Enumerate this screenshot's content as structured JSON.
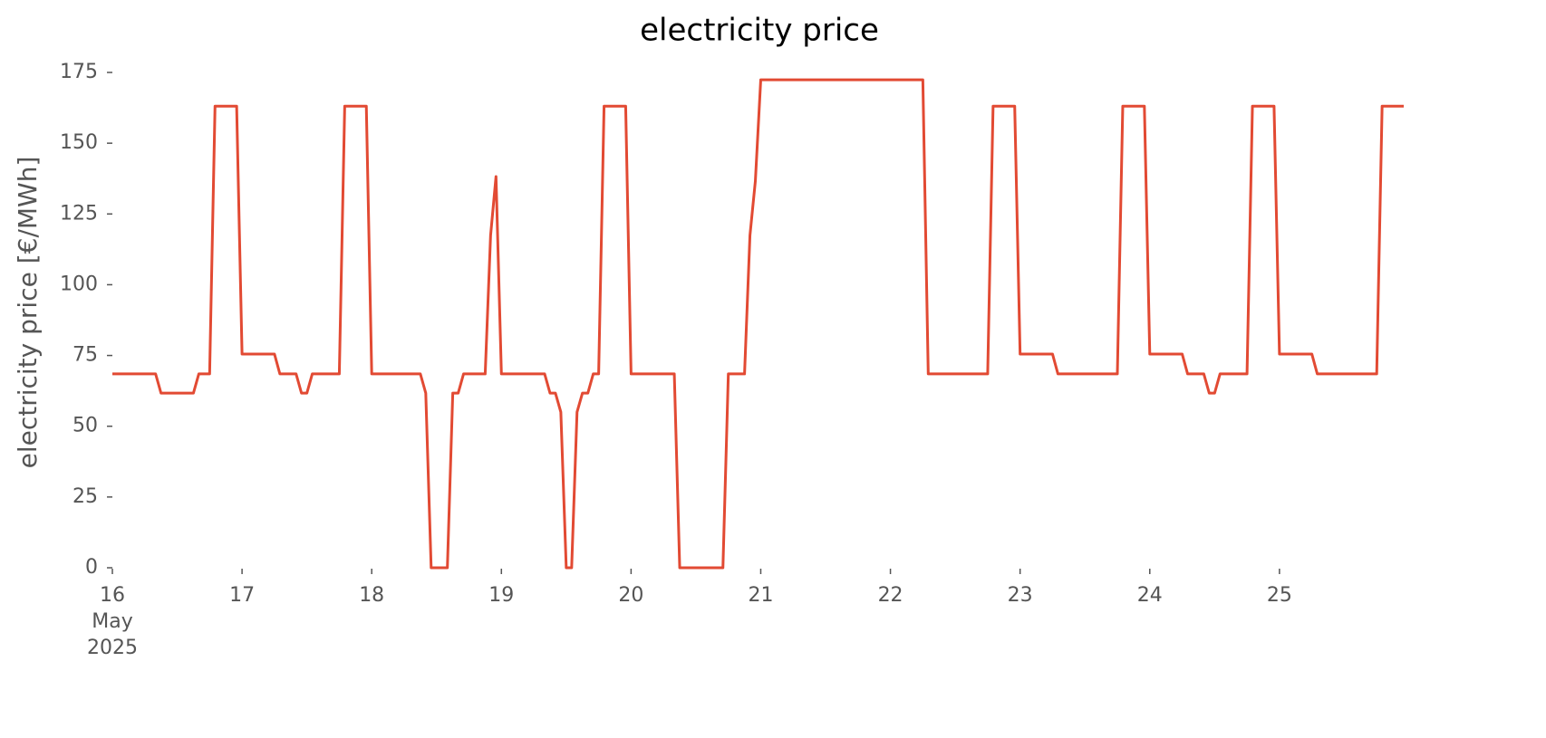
{
  "chart_data": {
    "type": "line",
    "title": "electricity price",
    "ylabel": "electricity price [€/MWh]",
    "color": "#e24a33",
    "xlim": [
      "2025-05-16T00:00",
      "2025-05-25T23:00"
    ],
    "xticks": [
      {
        "value": "2025-05-16T00:00",
        "label": "16\nMay\n2025"
      },
      {
        "value": "2025-05-17T00:00",
        "label": "17"
      },
      {
        "value": "2025-05-18T00:00",
        "label": "18"
      },
      {
        "value": "2025-05-19T00:00",
        "label": "19"
      },
      {
        "value": "2025-05-20T00:00",
        "label": "20"
      },
      {
        "value": "2025-05-21T00:00",
        "label": "21"
      },
      {
        "value": "2025-05-22T00:00",
        "label": "22"
      },
      {
        "value": "2025-05-23T00:00",
        "label": "23"
      },
      {
        "value": "2025-05-24T00:00",
        "label": "24"
      },
      {
        "value": "2025-05-25T00:00",
        "label": "25"
      }
    ],
    "ylim": [
      0,
      175
    ],
    "yticks": [
      0,
      25,
      50,
      75,
      100,
      125,
      150,
      175
    ],
    "x": [
      "2025-05-16T00:00",
      "2025-05-16T01:00",
      "2025-05-16T02:00",
      "2025-05-16T03:00",
      "2025-05-16T04:00",
      "2025-05-16T05:00",
      "2025-05-16T06:00",
      "2025-05-16T07:00",
      "2025-05-16T08:00",
      "2025-05-16T09:00",
      "2025-05-16T10:00",
      "2025-05-16T11:00",
      "2025-05-16T12:00",
      "2025-05-16T13:00",
      "2025-05-16T14:00",
      "2025-05-16T15:00",
      "2025-05-16T16:00",
      "2025-05-16T17:00",
      "2025-05-16T18:00",
      "2025-05-16T19:00",
      "2025-05-16T20:00",
      "2025-05-16T21:00",
      "2025-05-16T22:00",
      "2025-05-16T23:00",
      "2025-05-17T00:00",
      "2025-05-17T01:00",
      "2025-05-17T02:00",
      "2025-05-17T03:00",
      "2025-05-17T04:00",
      "2025-05-17T05:00",
      "2025-05-17T06:00",
      "2025-05-17T07:00",
      "2025-05-17T08:00",
      "2025-05-17T09:00",
      "2025-05-17T10:00",
      "2025-05-17T11:00",
      "2025-05-17T12:00",
      "2025-05-17T13:00",
      "2025-05-17T14:00",
      "2025-05-17T15:00",
      "2025-05-17T16:00",
      "2025-05-17T17:00",
      "2025-05-17T18:00",
      "2025-05-17T19:00",
      "2025-05-17T20:00",
      "2025-05-17T21:00",
      "2025-05-17T22:00",
      "2025-05-17T23:00",
      "2025-05-18T00:00",
      "2025-05-18T01:00",
      "2025-05-18T02:00",
      "2025-05-18T03:00",
      "2025-05-18T04:00",
      "2025-05-18T05:00",
      "2025-05-18T06:00",
      "2025-05-18T07:00",
      "2025-05-18T08:00",
      "2025-05-18T09:00",
      "2025-05-18T10:00",
      "2025-05-18T11:00",
      "2025-05-18T12:00",
      "2025-05-18T13:00",
      "2025-05-18T14:00",
      "2025-05-18T15:00",
      "2025-05-18T16:00",
      "2025-05-18T17:00",
      "2025-05-18T18:00",
      "2025-05-18T19:00",
      "2025-05-18T20:00",
      "2025-05-18T21:00",
      "2025-05-18T22:00",
      "2025-05-18T23:00",
      "2025-05-19T00:00",
      "2025-05-19T01:00",
      "2025-05-19T02:00",
      "2025-05-19T03:00",
      "2025-05-19T04:00",
      "2025-05-19T05:00",
      "2025-05-19T06:00",
      "2025-05-19T07:00",
      "2025-05-19T08:00",
      "2025-05-19T09:00",
      "2025-05-19T10:00",
      "2025-05-19T11:00",
      "2025-05-19T12:00",
      "2025-05-19T13:00",
      "2025-05-19T14:00",
      "2025-05-19T15:00",
      "2025-05-19T16:00",
      "2025-05-19T17:00",
      "2025-05-19T18:00",
      "2025-05-19T19:00",
      "2025-05-19T20:00",
      "2025-05-19T21:00",
      "2025-05-19T22:00",
      "2025-05-19T23:00",
      "2025-05-20T00:00",
      "2025-05-20T01:00",
      "2025-05-20T02:00",
      "2025-05-20T03:00",
      "2025-05-20T04:00",
      "2025-05-20T05:00",
      "2025-05-20T06:00",
      "2025-05-20T07:00",
      "2025-05-20T08:00",
      "2025-05-20T09:00",
      "2025-05-20T10:00",
      "2025-05-20T11:00",
      "2025-05-20T12:00",
      "2025-05-20T13:00",
      "2025-05-20T14:00",
      "2025-05-20T15:00",
      "2025-05-20T16:00",
      "2025-05-20T17:00",
      "2025-05-20T18:00",
      "2025-05-20T19:00",
      "2025-05-20T20:00",
      "2025-05-20T21:00",
      "2025-05-20T22:00",
      "2025-05-20T23:00",
      "2025-05-21T00:00",
      "2025-05-21T01:00",
      "2025-05-21T02:00",
      "2025-05-21T03:00",
      "2025-05-21T04:00",
      "2025-05-21T05:00",
      "2025-05-21T06:00",
      "2025-05-21T07:00",
      "2025-05-21T08:00",
      "2025-05-21T09:00",
      "2025-05-21T10:00",
      "2025-05-21T11:00",
      "2025-05-21T12:00",
      "2025-05-21T13:00",
      "2025-05-21T14:00",
      "2025-05-21T15:00",
      "2025-05-21T16:00",
      "2025-05-21T17:00",
      "2025-05-21T18:00",
      "2025-05-21T19:00",
      "2025-05-21T20:00",
      "2025-05-21T21:00",
      "2025-05-21T22:00",
      "2025-05-21T23:00",
      "2025-05-22T00:00",
      "2025-05-22T01:00",
      "2025-05-22T02:00",
      "2025-05-22T03:00",
      "2025-05-22T04:00",
      "2025-05-22T05:00",
      "2025-05-22T06:00",
      "2025-05-22T07:00",
      "2025-05-22T08:00",
      "2025-05-22T09:00",
      "2025-05-22T10:00",
      "2025-05-22T11:00",
      "2025-05-22T12:00",
      "2025-05-22T13:00",
      "2025-05-22T14:00",
      "2025-05-22T15:00",
      "2025-05-22T16:00",
      "2025-05-22T17:00",
      "2025-05-22T18:00",
      "2025-05-22T19:00",
      "2025-05-22T20:00",
      "2025-05-22T21:00",
      "2025-05-22T22:00",
      "2025-05-22T23:00",
      "2025-05-23T00:00",
      "2025-05-23T01:00",
      "2025-05-23T02:00",
      "2025-05-23T03:00",
      "2025-05-23T04:00",
      "2025-05-23T05:00",
      "2025-05-23T06:00",
      "2025-05-23T07:00",
      "2025-05-23T08:00",
      "2025-05-23T09:00",
      "2025-05-23T10:00",
      "2025-05-23T11:00",
      "2025-05-23T12:00",
      "2025-05-23T13:00",
      "2025-05-23T14:00",
      "2025-05-23T15:00",
      "2025-05-23T16:00",
      "2025-05-23T17:00",
      "2025-05-23T18:00",
      "2025-05-23T19:00",
      "2025-05-23T20:00",
      "2025-05-23T21:00",
      "2025-05-23T22:00",
      "2025-05-23T23:00",
      "2025-05-24T00:00",
      "2025-05-24T01:00",
      "2025-05-24T02:00",
      "2025-05-24T03:00",
      "2025-05-24T04:00",
      "2025-05-24T05:00",
      "2025-05-24T06:00",
      "2025-05-24T07:00",
      "2025-05-24T08:00",
      "2025-05-24T09:00",
      "2025-05-24T10:00",
      "2025-05-24T11:00",
      "2025-05-24T12:00",
      "2025-05-24T13:00",
      "2025-05-24T14:00",
      "2025-05-24T15:00",
      "2025-05-24T16:00",
      "2025-05-24T17:00",
      "2025-05-24T18:00",
      "2025-05-24T19:00",
      "2025-05-24T20:00",
      "2025-05-24T21:00",
      "2025-05-24T22:00",
      "2025-05-24T23:00",
      "2025-05-25T00:00",
      "2025-05-25T01:00",
      "2025-05-25T02:00",
      "2025-05-25T03:00",
      "2025-05-25T04:00",
      "2025-05-25T05:00",
      "2025-05-25T06:00",
      "2025-05-25T07:00",
      "2025-05-25T08:00",
      "2025-05-25T09:00",
      "2025-05-25T10:00",
      "2025-05-25T11:00",
      "2025-05-25T12:00",
      "2025-05-25T13:00",
      "2025-05-25T14:00",
      "2025-05-25T15:00",
      "2025-05-25T16:00",
      "2025-05-25T17:00",
      "2025-05-25T18:00",
      "2025-05-25T19:00",
      "2025-05-25T20:00",
      "2025-05-25T21:00",
      "2025-05-25T22:00",
      "2025-05-25T23:00"
    ],
    "values": [
      68.5,
      68.5,
      68.5,
      68.5,
      68.5,
      68.5,
      68.5,
      68.5,
      68.5,
      61.7,
      61.7,
      61.7,
      61.7,
      61.7,
      61.7,
      61.7,
      68.5,
      68.5,
      68.5,
      163.1,
      163.1,
      163.1,
      163.1,
      163.1,
      75.5,
      75.5,
      75.5,
      75.5,
      75.5,
      75.5,
      75.5,
      68.5,
      68.5,
      68.5,
      68.5,
      61.7,
      61.7,
      68.5,
      68.5,
      68.5,
      68.5,
      68.5,
      68.5,
      163.1,
      163.1,
      163.1,
      163.1,
      163.1,
      68.5,
      68.5,
      68.5,
      68.5,
      68.5,
      68.5,
      68.5,
      68.5,
      68.5,
      68.5,
      61.7,
      0,
      0,
      0,
      0,
      61.7,
      61.7,
      68.5,
      68.5,
      68.5,
      68.5,
      68.5,
      117.4,
      138.2,
      68.5,
      68.5,
      68.5,
      68.5,
      68.5,
      68.5,
      68.5,
      68.5,
      68.5,
      61.7,
      61.7,
      55,
      0,
      0,
      55,
      61.7,
      61.7,
      68.5,
      68.5,
      163.1,
      163.1,
      163.1,
      163.1,
      163.1,
      68.5,
      68.5,
      68.5,
      68.5,
      68.5,
      68.5,
      68.5,
      68.5,
      68.5,
      0,
      0,
      0,
      0,
      0,
      0,
      0,
      0,
      0,
      68.5,
      68.5,
      68.5,
      68.5,
      117.4,
      136.6,
      172.4,
      172.4,
      172.4,
      172.4,
      172.4,
      172.4,
      172.4,
      172.4,
      172.4,
      172.4,
      172.4,
      172.4,
      172.4,
      172.4,
      172.4,
      172.4,
      172.4,
      172.4,
      172.4,
      172.4,
      172.4,
      172.4,
      172.4,
      172.4,
      172.4,
      172.4,
      172.4,
      172.4,
      172.4,
      172.4,
      172.4,
      68.5,
      68.5,
      68.5,
      68.5,
      68.5,
      68.5,
      68.5,
      68.5,
      68.5,
      68.5,
      68.5,
      68.5,
      163.1,
      163.1,
      163.1,
      163.1,
      163.1,
      75.5,
      75.5,
      75.5,
      75.5,
      75.5,
      75.5,
      75.5,
      68.5,
      68.5,
      68.5,
      68.5,
      68.5,
      68.5,
      68.5,
      68.5,
      68.5,
      68.5,
      68.5,
      68.5,
      163.1,
      163.1,
      163.1,
      163.1,
      163.1,
      75.5,
      75.5,
      75.5,
      75.5,
      75.5,
      75.5,
      75.5,
      68.5,
      68.5,
      68.5,
      68.5,
      61.7,
      61.7,
      68.5,
      68.5,
      68.5,
      68.5,
      68.5,
      68.5,
      163.1,
      163.1,
      163.1,
      163.1,
      163.1,
      75.5,
      75.5,
      75.5,
      75.5,
      75.5,
      75.5,
      75.5,
      68.5,
      68.5,
      68.5,
      68.5,
      68.5,
      68.5,
      68.5,
      68.5,
      68.5,
      68.5,
      68.5,
      68.5,
      163.1,
      163.1,
      163.1,
      163.1,
      163.1
    ]
  }
}
